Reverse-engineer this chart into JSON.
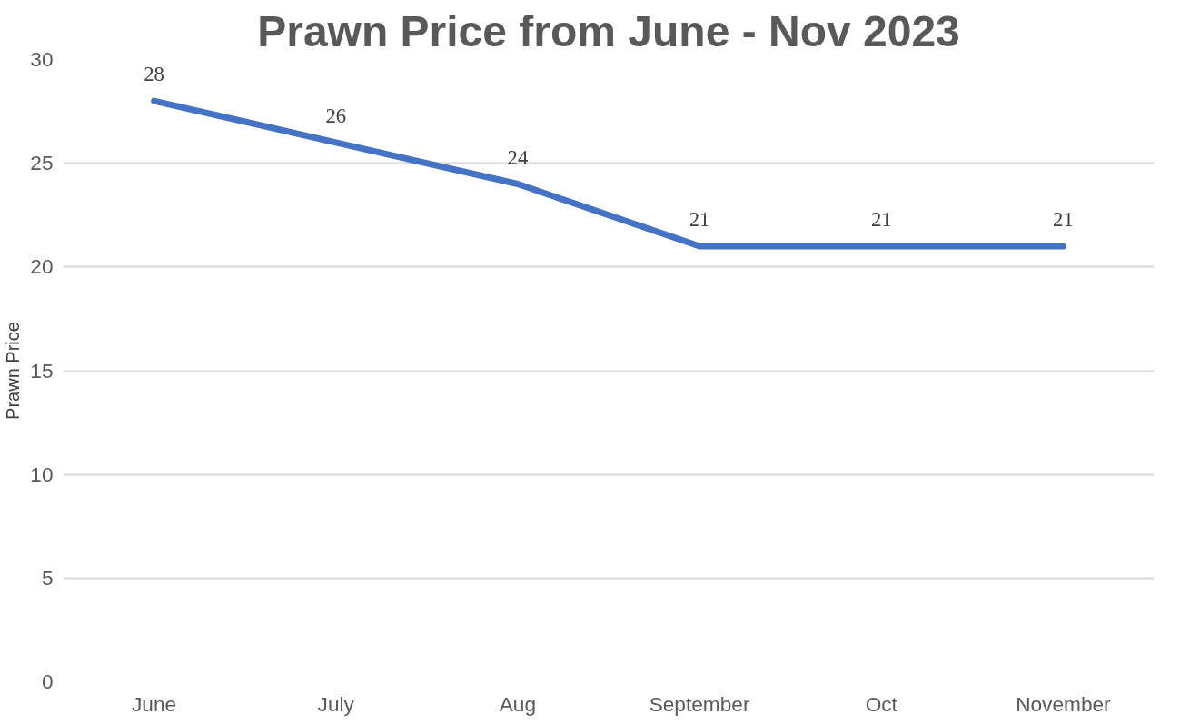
{
  "chart_data": {
    "type": "line",
    "title": "Prawn Price from June - Nov 2023",
    "ylabel": "Prawn Price",
    "categories": [
      "June",
      "July",
      "Aug",
      "September",
      "Oct",
      "November"
    ],
    "series": [
      {
        "color": "#4472c4",
        "values": [
          28,
          26,
          24,
          21,
          21,
          21
        ]
      }
    ],
    "ylim": [
      0,
      30
    ],
    "yticks": [
      0,
      5,
      10,
      15,
      20,
      25,
      30
    ],
    "grid": "y",
    "data_labels": true,
    "line_style": "solid"
  }
}
